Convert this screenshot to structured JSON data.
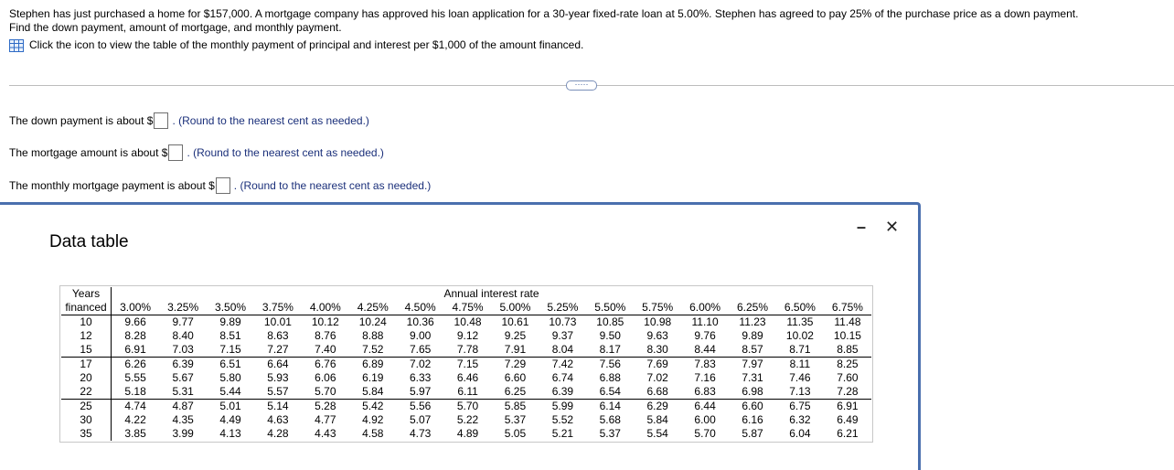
{
  "prompt": {
    "line1": "Stephen has just purchased a home for $157,000. A mortgage company has approved his loan application for a 30-year fixed-rate loan at 5.00%. Stephen has agreed to pay 25% of the purchase price as a down payment.",
    "line2": "Find the down payment, amount of mortgage, and monthly payment.",
    "icon_text": "Click the icon to view the table of the monthly payment of principal and interest per $1,000 of the amount financed."
  },
  "expand_label": "·····",
  "questions": [
    {
      "label": "The down payment is about $",
      "hint": ". (Round to the nearest cent as needed.)"
    },
    {
      "label": "The mortgage amount is about $",
      "hint": ". (Round to the nearest cent as needed.)"
    },
    {
      "label": "The monthly mortgage payment is about $",
      "hint": ". (Round to the nearest cent as needed.)"
    }
  ],
  "modal": {
    "title": "Data table",
    "minimize": "–",
    "close": "✕",
    "header_top": "Years",
    "header_left": "financed",
    "header_rate": "Annual interest rate",
    "rates": [
      "3.00%",
      "3.25%",
      "3.50%",
      "3.75%",
      "4.00%",
      "4.25%",
      "4.50%",
      "4.75%",
      "5.00%",
      "5.25%",
      "5.50%",
      "5.75%",
      "6.00%",
      "6.25%",
      "6.50%",
      "6.75%"
    ],
    "groups": [
      {
        "years": [
          "10",
          "12",
          "15"
        ],
        "rows": [
          [
            "9.66",
            "9.77",
            "9.89",
            "10.01",
            "10.12",
            "10.24",
            "10.36",
            "10.48",
            "10.61",
            "10.73",
            "10.85",
            "10.98",
            "11.10",
            "11.23",
            "11.35",
            "11.48"
          ],
          [
            "8.28",
            "8.40",
            "8.51",
            "8.63",
            "8.76",
            "8.88",
            "9.00",
            "9.12",
            "9.25",
            "9.37",
            "9.50",
            "9.63",
            "9.76",
            "9.89",
            "10.02",
            "10.15"
          ],
          [
            "6.91",
            "7.03",
            "7.15",
            "7.27",
            "7.40",
            "7.52",
            "7.65",
            "7.78",
            "7.91",
            "8.04",
            "8.17",
            "8.30",
            "8.44",
            "8.57",
            "8.71",
            "8.85"
          ]
        ]
      },
      {
        "years": [
          "17",
          "20",
          "22"
        ],
        "rows": [
          [
            "6.26",
            "6.39",
            "6.51",
            "6.64",
            "6.76",
            "6.89",
            "7.02",
            "7.15",
            "7.29",
            "7.42",
            "7.56",
            "7.69",
            "7.83",
            "7.97",
            "8.11",
            "8.25"
          ],
          [
            "5.55",
            "5.67",
            "5.80",
            "5.93",
            "6.06",
            "6.19",
            "6.33",
            "6.46",
            "6.60",
            "6.74",
            "6.88",
            "7.02",
            "7.16",
            "7.31",
            "7.46",
            "7.60"
          ],
          [
            "5.18",
            "5.31",
            "5.44",
            "5.57",
            "5.70",
            "5.84",
            "5.97",
            "6.11",
            "6.25",
            "6.39",
            "6.54",
            "6.68",
            "6.83",
            "6.98",
            "7.13",
            "7.28"
          ]
        ]
      },
      {
        "years": [
          "25",
          "30",
          "35"
        ],
        "rows": [
          [
            "4.74",
            "4.87",
            "5.01",
            "5.14",
            "5.28",
            "5.42",
            "5.56",
            "5.70",
            "5.85",
            "5.99",
            "6.14",
            "6.29",
            "6.44",
            "6.60",
            "6.75",
            "6.91"
          ],
          [
            "4.22",
            "4.35",
            "4.49",
            "4.63",
            "4.77",
            "4.92",
            "5.07",
            "5.22",
            "5.37",
            "5.52",
            "5.68",
            "5.84",
            "6.00",
            "6.16",
            "6.32",
            "6.49"
          ],
          [
            "3.85",
            "3.99",
            "4.13",
            "4.28",
            "4.43",
            "4.58",
            "4.73",
            "4.89",
            "5.05",
            "5.21",
            "5.37",
            "5.54",
            "5.70",
            "5.87",
            "6.04",
            "6.21"
          ]
        ]
      }
    ]
  }
}
